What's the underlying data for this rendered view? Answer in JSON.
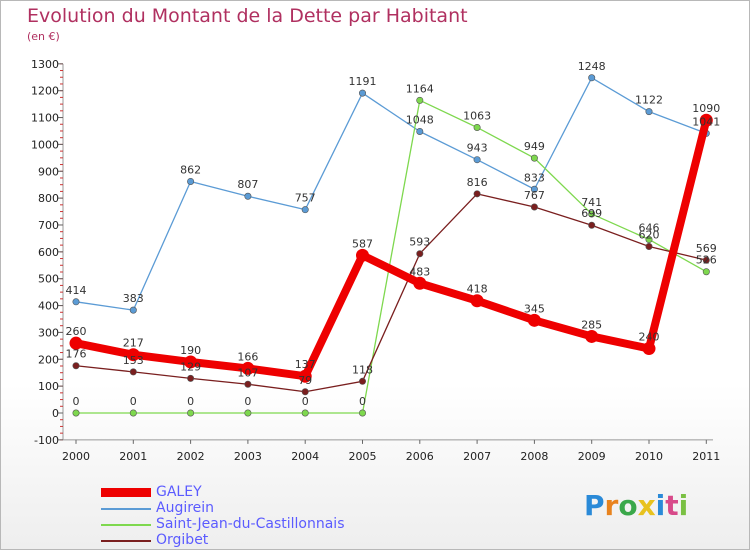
{
  "header": {
    "title": "Evolution du Montant de la Dette par Habitant",
    "unit": "(en €)"
  },
  "logo": {
    "letters": [
      "P",
      "r",
      "o",
      "x",
      "i",
      "t",
      "i"
    ],
    "colors": [
      "#2a8ad8",
      "#e8831e",
      "#3aa84a",
      "#e8c21e",
      "#2a8ad8",
      "#d84a8a",
      "#7ac043"
    ]
  },
  "chart_data": {
    "type": "line",
    "title": "Evolution du Montant de la Dette par Habitant",
    "ylabel": "(en €)",
    "xlabel": "",
    "categories": [
      "2000",
      "2001",
      "2002",
      "2003",
      "2004",
      "2005",
      "2006",
      "2007",
      "2008",
      "2009",
      "2010",
      "2011"
    ],
    "ylim": [
      -100,
      1300
    ],
    "yticks": [
      -100,
      0,
      100,
      200,
      300,
      400,
      500,
      600,
      700,
      800,
      900,
      1000,
      1100,
      1200,
      1300
    ],
    "grid": false,
    "legend_position": "bottom-left",
    "series": [
      {
        "name": "GALEY",
        "color": "#ee0000",
        "values": [
          260,
          217,
          190,
          166,
          137,
          587,
          483,
          418,
          345,
          285,
          240,
          1090
        ]
      },
      {
        "name": "Augirein",
        "color": "#5b9bd5",
        "values": [
          414,
          383,
          862,
          807,
          757,
          1191,
          1048,
          943,
          833,
          1248,
          1122,
          1041
        ]
      },
      {
        "name": "Saint-Jean-du-Castillonnais",
        "color": "#7ed84e",
        "values": [
          0,
          0,
          0,
          0,
          0,
          0,
          1164,
          1063,
          949,
          741,
          646,
          526
        ]
      },
      {
        "name": "Orgibet",
        "color": "#7a1f1f",
        "values": [
          176,
          153,
          129,
          107,
          79,
          118,
          593,
          816,
          767,
          699,
          620,
          569
        ]
      }
    ]
  }
}
